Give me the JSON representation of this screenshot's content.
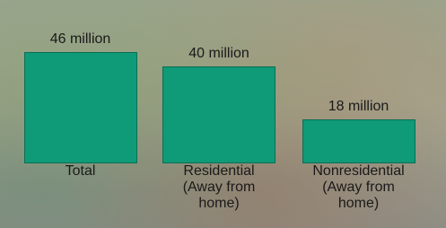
{
  "chart_data": {
    "type": "bar",
    "categories": [
      "Total",
      "Residential (Away from home)",
      "Nonresidential (Away from home)"
    ],
    "values": [
      46,
      40,
      18
    ],
    "value_labels": [
      "46 million",
      "40 million",
      "18 million"
    ],
    "color": "#0f9a78"
  }
}
